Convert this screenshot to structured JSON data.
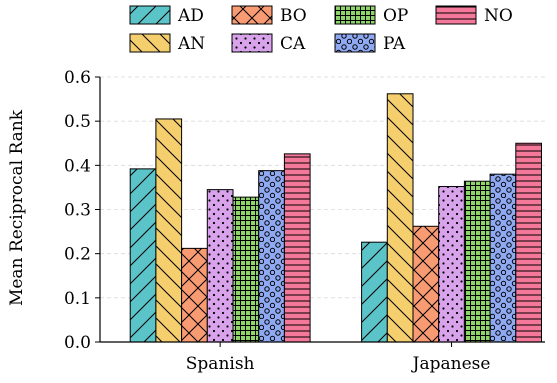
{
  "chart_data": {
    "type": "bar",
    "ylabel": "Mean Reciprocal Rank",
    "ylim": [
      0,
      0.6
    ],
    "yticks": [
      0.0,
      0.1,
      0.2,
      0.3,
      0.4,
      0.5,
      0.6
    ],
    "ytick_labels": [
      "0.0",
      "0.1",
      "0.2",
      "0.3",
      "0.4",
      "0.5",
      "0.6"
    ],
    "grid": "horizontal dashed",
    "legend_position": "top",
    "categories": [
      "Spanish",
      "Japanese"
    ],
    "series": [
      {
        "name": "AD",
        "color": "#5bc4c8",
        "pattern": "diag-forward",
        "values": [
          0.392,
          0.226
        ]
      },
      {
        "name": "AN",
        "color": "#f5cf6e",
        "pattern": "diag-back",
        "values": [
          0.505,
          0.562
        ]
      },
      {
        "name": "BO",
        "color": "#f99b72",
        "pattern": "cross-diag",
        "values": [
          0.212,
          0.262
        ]
      },
      {
        "name": "CA",
        "color": "#d9a3ec",
        "pattern": "small-dots",
        "values": [
          0.345,
          0.352
        ]
      },
      {
        "name": "OP",
        "color": "#8fd46a",
        "pattern": "grid",
        "values": [
          0.328,
          0.364
        ]
      },
      {
        "name": "PA",
        "color": "#8fa9f2",
        "pattern": "circles",
        "values": [
          0.388,
          0.38
        ]
      },
      {
        "name": "NO",
        "color": "#f4789a",
        "pattern": "horizontal",
        "values": [
          0.426,
          0.45
        ]
      }
    ]
  }
}
